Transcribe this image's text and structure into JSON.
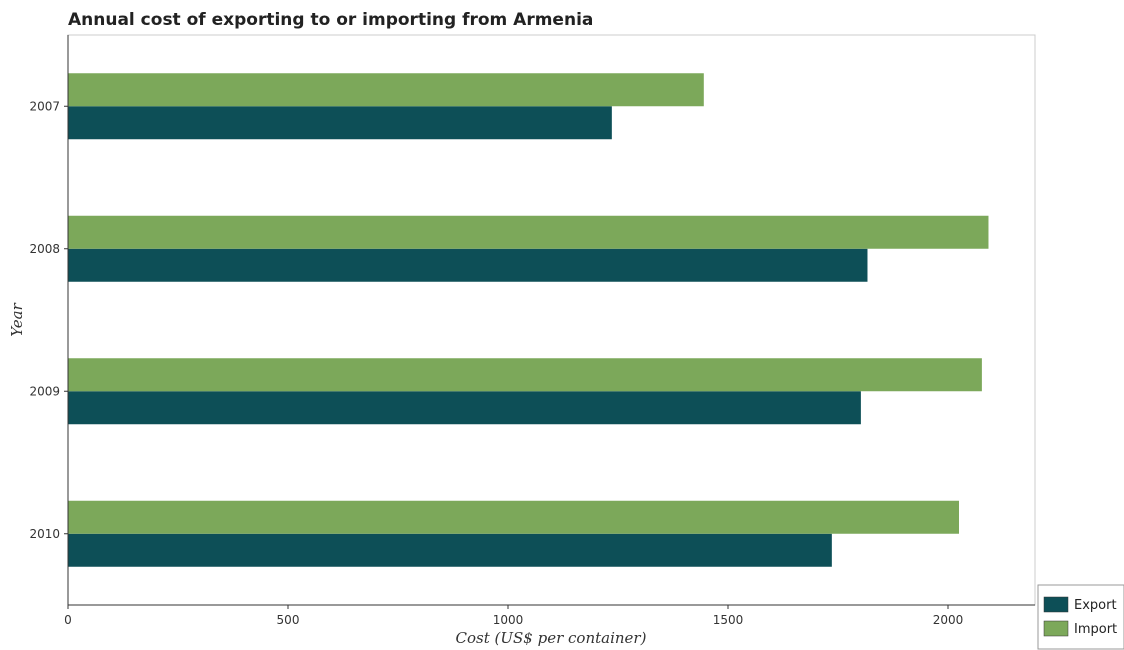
{
  "chart_data": {
    "type": "bar",
    "orientation": "horizontal",
    "title": "Annual cost of exporting to or importing from Armenia",
    "xlabel": "Cost (US$ per container)",
    "ylabel": "Year",
    "categories": [
      "2007",
      "2008",
      "2009",
      "2010"
    ],
    "series": [
      {
        "name": "Export",
        "color": "#0d4f57",
        "values": [
          1236,
          1817,
          1802,
          1736
        ]
      },
      {
        "name": "Import",
        "color": "#7ca85a",
        "values": [
          1445,
          2092,
          2077,
          2025
        ]
      }
    ],
    "xlim": [
      0,
      2200
    ],
    "xticks": [
      0,
      500,
      1000,
      1500,
      2000
    ],
    "legend_position": "bottom-right",
    "grid": false
  }
}
